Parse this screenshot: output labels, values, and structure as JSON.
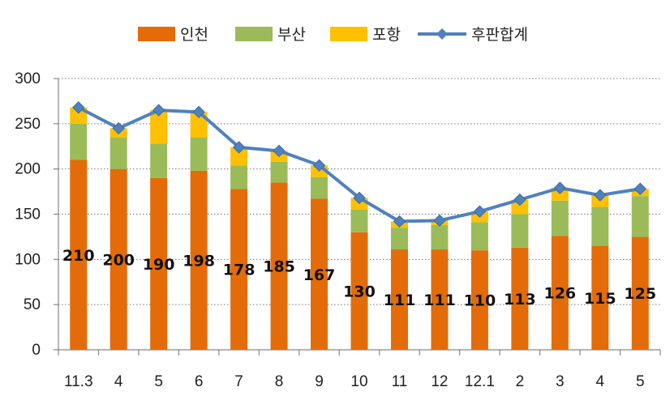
{
  "chart_data": {
    "type": "bar",
    "title": "",
    "xlabel": "",
    "ylabel": "",
    "ylim": [
      0,
      300
    ],
    "yticks": [
      0,
      50,
      100,
      150,
      200,
      250,
      300
    ],
    "grid": true,
    "legend_position": "top",
    "categories": [
      "11.3",
      "4",
      "5",
      "6",
      "7",
      "8",
      "9",
      "10",
      "11",
      "12",
      "12.1",
      "2",
      "3",
      "4",
      "5"
    ],
    "series": [
      {
        "name": "인천",
        "kind": "bar",
        "color": "#E36C09",
        "values": [
          210,
          200,
          190,
          198,
          178,
          185,
          167,
          130,
          111,
          111,
          110,
          113,
          126,
          115,
          125
        ]
      },
      {
        "name": "부산",
        "kind": "bar",
        "color": "#9BBB59",
        "values": [
          40,
          35,
          38,
          37,
          26,
          23,
          24,
          25,
          24,
          27,
          31,
          37,
          39,
          43,
          45
        ]
      },
      {
        "name": "포항",
        "kind": "bar",
        "color": "#FFC000",
        "values": [
          18,
          10,
          37,
          28,
          20,
          12,
          13,
          13,
          7,
          5,
          12,
          16,
          14,
          13,
          8
        ]
      },
      {
        "name": "후판합계",
        "kind": "line",
        "color": "#4F81BD",
        "values": [
          268,
          245,
          265,
          263,
          224,
          220,
          204,
          168,
          142,
          143,
          153,
          166,
          179,
          171,
          178
        ]
      }
    ],
    "data_labels": [
      "210",
      "200",
      "190",
      "198",
      "178",
      "185",
      "167",
      "130",
      "111",
      "111",
      "110",
      "113",
      "126",
      "115",
      "125"
    ],
    "data_label_offsets": [
      0,
      0,
      0,
      0,
      0,
      0,
      0,
      0,
      0,
      0,
      0,
      0,
      0,
      0,
      0
    ]
  }
}
